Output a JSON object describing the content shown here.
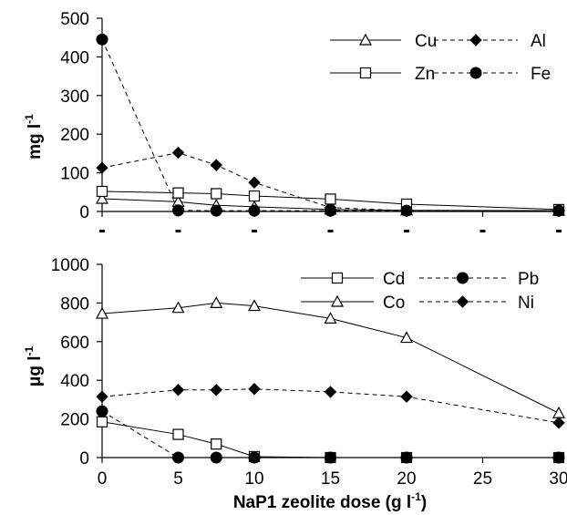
{
  "chart_data": [
    {
      "type": "line",
      "ylabel": "mg l",
      "ylabel_sup": "-1",
      "ylim": [
        0,
        500
      ],
      "yticks": [
        0,
        100,
        200,
        300,
        400,
        500
      ],
      "xlim": [
        0,
        30
      ],
      "xticks": [
        0,
        5,
        10,
        15,
        20,
        25,
        30
      ],
      "grid": false,
      "legend_position": "top-right",
      "series": [
        {
          "name": "Cu",
          "marker": "triangle-open",
          "dashed": false,
          "x": [
            0,
            5,
            7.5,
            10,
            15,
            20,
            30
          ],
          "y": [
            33,
            25,
            16,
            12,
            5,
            3,
            2
          ]
        },
        {
          "name": "Al",
          "marker": "diamond-filled",
          "dashed": true,
          "x": [
            0,
            5,
            7.5,
            10,
            15,
            20,
            30
          ],
          "y": [
            113,
            152,
            120,
            75,
            10,
            2,
            2
          ]
        },
        {
          "name": "Zn",
          "marker": "square-open",
          "dashed": false,
          "x": [
            0,
            5,
            7.5,
            10,
            15,
            20,
            30
          ],
          "y": [
            52,
            48,
            46,
            40,
            32,
            19,
            5
          ]
        },
        {
          "name": "Fe",
          "marker": "circle-filled",
          "dashed": true,
          "x": [
            0,
            5,
            7.5,
            10,
            15,
            20,
            30
          ],
          "y": [
            445,
            3,
            2,
            2,
            2,
            2,
            2
          ]
        }
      ]
    },
    {
      "type": "line",
      "ylabel": "μg l",
      "ylabel_sup": "-1",
      "xlabel": "NaP1 zeolite dose (g l",
      "xlabel_sup": "-1",
      "xlabel_end": ")",
      "ylim": [
        0,
        1000
      ],
      "yticks": [
        0,
        200,
        400,
        600,
        800,
        1000
      ],
      "xlim": [
        0,
        30
      ],
      "xticks": [
        0,
        5,
        10,
        15,
        20,
        25,
        30
      ],
      "grid": false,
      "legend_position": "top-right",
      "series": [
        {
          "name": "Cd",
          "marker": "square-open",
          "dashed": false,
          "x": [
            0,
            5,
            7.5,
            10,
            15,
            20,
            30
          ],
          "y": [
            185,
            120,
            70,
            5,
            0,
            0,
            0
          ]
        },
        {
          "name": "Pb",
          "marker": "circle-filled",
          "dashed": true,
          "x": [
            0,
            5,
            7.5,
            10,
            15,
            20,
            30
          ],
          "y": [
            240,
            0,
            0,
            0,
            0,
            0,
            0
          ]
        },
        {
          "name": "Co",
          "marker": "triangle-open",
          "dashed": false,
          "x": [
            0,
            5,
            7.5,
            10,
            15,
            20,
            30
          ],
          "y": [
            745,
            775,
            800,
            785,
            720,
            620,
            230
          ]
        },
        {
          "name": "Ni",
          "marker": "diamond-filled",
          "dashed": true,
          "x": [
            0,
            5,
            7.5,
            10,
            15,
            20,
            30
          ],
          "y": [
            315,
            350,
            350,
            355,
            340,
            315,
            180
          ]
        }
      ]
    }
  ]
}
